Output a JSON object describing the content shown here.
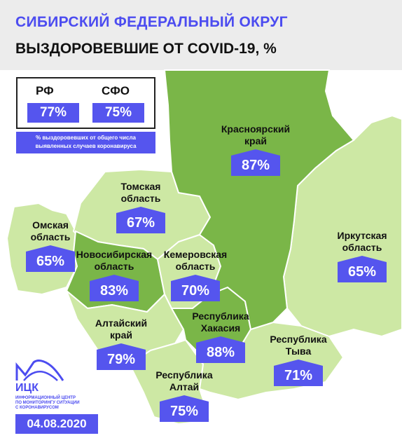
{
  "header": {
    "title": "СИБИРСКИЙ ФЕДЕРАЛЬНЫЙ ОКРУГ",
    "subtitle": "ВЫЗДОРОВЕВШИЕ ОТ COVID-19, %"
  },
  "legend": {
    "rf_label": "РФ",
    "rf_value": "77%",
    "sfo_label": "СФО",
    "sfo_value": "75%",
    "note_line1": "% выздоровевших от общего числа",
    "note_line2": "выявленных случаев коронавируса"
  },
  "regions": {
    "krasnoyarsk": {
      "name1": "Красноярский",
      "name2": "край",
      "value": "87%"
    },
    "tomsk": {
      "name1": "Томская",
      "name2": "область",
      "value": "67%"
    },
    "omsk": {
      "name1": "Омская",
      "name2": "область",
      "value": "65%"
    },
    "novosibirsk": {
      "name1": "Новосибирская",
      "name2": "область",
      "value": "83%"
    },
    "kemerovo": {
      "name1": "Кемеровская",
      "name2": "область",
      "value": "70%"
    },
    "irkutsk": {
      "name1": "Иркутская",
      "name2": "область",
      "value": "65%"
    },
    "altai_krai": {
      "name1": "Алтайский",
      "name2": "край",
      "value": "79%"
    },
    "khakassia": {
      "name1": "Республика",
      "name2": "Хакасия",
      "value": "88%"
    },
    "tyva": {
      "name1": "Республика",
      "name2": "Тыва",
      "value": "71%"
    },
    "altai_rep": {
      "name1": "Республика",
      "name2": "Алтай",
      "value": "75%"
    }
  },
  "logo": {
    "name": "ИЦК",
    "sub1": "ИНФОРМАЦИОННЫЙ ЦЕНТР",
    "sub2": "ПО МОНИТОРИНГУ СИТУАЦИИ",
    "sub3": "С КОРОНАВИРУСОМ"
  },
  "date": "04.08.2020",
  "colors": {
    "accent": "#5555ee",
    "dark_green": "#7ab648",
    "mid_green": "#a9d46e",
    "light_green": "#cde8a4",
    "border": "#ffffff"
  }
}
